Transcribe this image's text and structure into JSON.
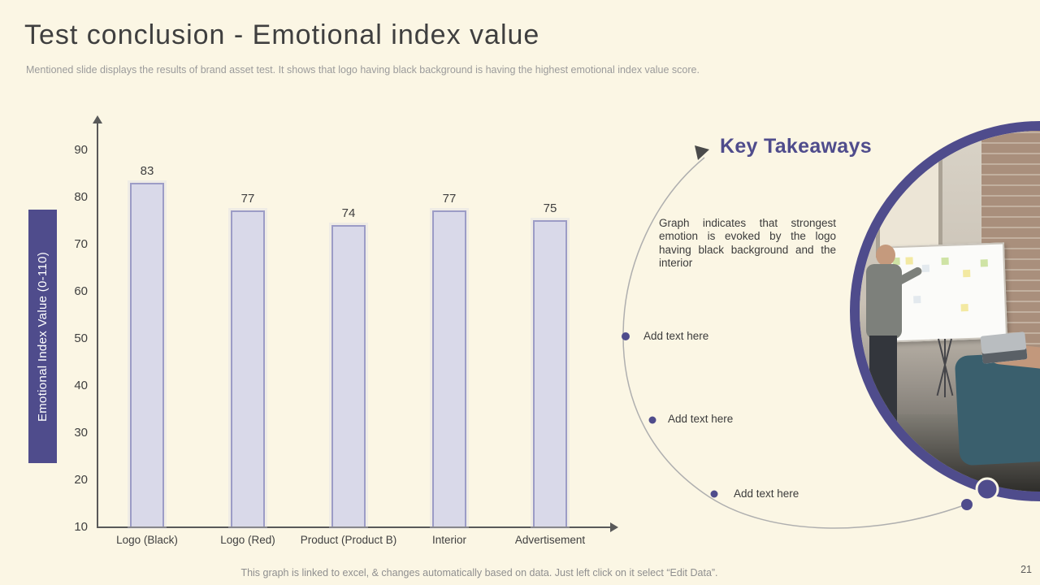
{
  "slide": {
    "title": "Test conclusion - Emotional index value",
    "subtitle": "Mentioned slide displays the results of brand asset test. It shows that logo having black background is having the highest emotional index value score.",
    "footer_note": "This graph is linked to excel, & changes automatically based on data. Just left click on it select “Edit Data”.",
    "page_number": "21"
  },
  "chart_data": {
    "type": "bar",
    "categories": [
      "Logo (Black)",
      "Logo (Red)",
      "Product (Product B)",
      "Interior",
      "Advertisement"
    ],
    "values": [
      83,
      77,
      74,
      77,
      75
    ],
    "title": "",
    "xlabel": "",
    "ylabel": "Emotional Index Value (0-110)",
    "ylim": [
      10,
      95
    ],
    "yticks": [
      10,
      20,
      30,
      40,
      50,
      60,
      70,
      80,
      90
    ],
    "grid": false,
    "bar_value_labels_shown": true,
    "legend": "none"
  },
  "takeaways": {
    "heading": "Key Takeaways",
    "items": [
      "Graph indicates that strongest emotion is evoked by the logo having black background and the interior",
      "Add text here",
      "Add text here",
      "Add text here"
    ]
  },
  "colors": {
    "background": "#FBF6E4",
    "accent_purple": "#4F4C8C",
    "bar_fill": "#D9D9E9",
    "bar_border": "#9C9CC6",
    "axis": "#595959",
    "text_dark": "#3F3F3F",
    "text_muted": "#9B9B9B",
    "arc": "#AFAFAF"
  }
}
